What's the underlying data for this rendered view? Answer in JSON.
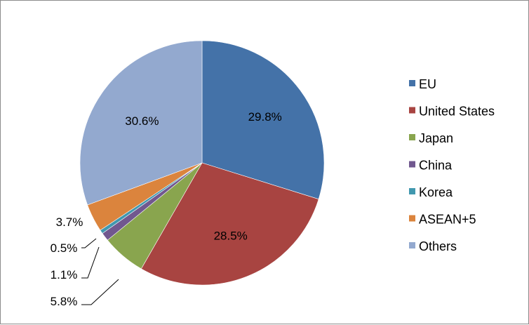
{
  "chart_data": {
    "type": "pie",
    "title": "",
    "start_angle_deg": 0,
    "direction": "clockwise",
    "legend_position": "right",
    "slices": [
      {
        "label": "EU",
        "value": 29.8,
        "value_label": "29.8%",
        "color": "#4472A8"
      },
      {
        "label": "United States",
        "value": 28.5,
        "value_label": "28.5%",
        "color": "#A84441"
      },
      {
        "label": "Japan",
        "value": 5.8,
        "value_label": "5.8%",
        "color": "#89A54E"
      },
      {
        "label": "China",
        "value": 1.1,
        "value_label": "1.1%",
        "color": "#71588F"
      },
      {
        "label": "Korea",
        "value": 0.5,
        "value_label": "0.5%",
        "color": "#4198AF"
      },
      {
        "label": "ASEAN+5",
        "value": 3.7,
        "value_label": "3.7%",
        "color": "#DB843D"
      },
      {
        "label": "Others",
        "value": 30.6,
        "value_label": "30.6%",
        "color": "#93A9CF"
      }
    ]
  }
}
